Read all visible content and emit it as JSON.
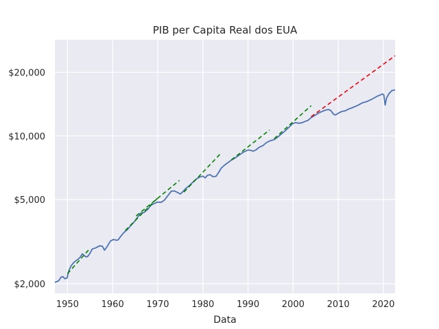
{
  "chart_data": {
    "type": "line",
    "title": "PIB per Capita Real dos EUA",
    "xlabel": "Data",
    "ylabel": "",
    "xlim": [
      1947.2,
      2022.6
    ],
    "ylim": [
      1800,
      28500
    ],
    "y_scale": "log",
    "x_ticks": [
      1950,
      1960,
      1970,
      1980,
      1990,
      2000,
      2010,
      2020
    ],
    "y_ticks": [
      {
        "value": 2000,
        "label": "$2,000"
      },
      {
        "value": 5000,
        "label": "$5,000"
      },
      {
        "value": 10000,
        "label": "$10,000"
      },
      {
        "value": 20000,
        "label": "$20,000"
      }
    ],
    "grid": true,
    "background": "#eaeaf2",
    "colors": {
      "main": "#4c72b0",
      "cycle_trend": "#008000",
      "projection": "#e8000b"
    },
    "series": [
      {
        "style": "solid",
        "points": [
          [
            1947.2,
            2030
          ],
          [
            1948.0,
            2060
          ],
          [
            1948.6,
            2150
          ],
          [
            1949.0,
            2160
          ],
          [
            1949.4,
            2110
          ],
          [
            1949.9,
            2130
          ],
          [
            1950.3,
            2310
          ],
          [
            1950.8,
            2430
          ],
          [
            1951.4,
            2520
          ],
          [
            1952.0,
            2580
          ],
          [
            1952.7,
            2650
          ],
          [
            1953.3,
            2770
          ],
          [
            1953.9,
            2690
          ],
          [
            1954.4,
            2680
          ],
          [
            1954.9,
            2770
          ],
          [
            1955.5,
            2920
          ],
          [
            1956.2,
            2950
          ],
          [
            1957.1,
            3020
          ],
          [
            1957.7,
            3010
          ],
          [
            1958.2,
            2880
          ],
          [
            1958.8,
            3000
          ],
          [
            1959.5,
            3180
          ],
          [
            1960.2,
            3240
          ],
          [
            1960.8,
            3210
          ],
          [
            1961.2,
            3220
          ],
          [
            1961.8,
            3350
          ],
          [
            1962.5,
            3490
          ],
          [
            1963.3,
            3610
          ],
          [
            1964.0,
            3760
          ],
          [
            1964.7,
            3900
          ],
          [
            1965.5,
            4120
          ],
          [
            1966.2,
            4310
          ],
          [
            1967.0,
            4350
          ],
          [
            1967.8,
            4500
          ],
          [
            1968.5,
            4700
          ],
          [
            1969.3,
            4800
          ],
          [
            1970.0,
            4860
          ],
          [
            1970.8,
            4850
          ],
          [
            1971.5,
            4980
          ],
          [
            1972.3,
            5240
          ],
          [
            1973.0,
            5480
          ],
          [
            1973.7,
            5490
          ],
          [
            1974.4,
            5400
          ],
          [
            1975.0,
            5310
          ],
          [
            1975.6,
            5460
          ],
          [
            1976.2,
            5640
          ],
          [
            1977.0,
            5820
          ],
          [
            1977.8,
            6050
          ],
          [
            1978.5,
            6250
          ],
          [
            1979.3,
            6390
          ],
          [
            1980.0,
            6450
          ],
          [
            1980.5,
            6330
          ],
          [
            1981.0,
            6500
          ],
          [
            1981.6,
            6560
          ],
          [
            1982.2,
            6420
          ],
          [
            1982.9,
            6430
          ],
          [
            1983.5,
            6720
          ],
          [
            1984.1,
            7050
          ],
          [
            1984.8,
            7270
          ],
          [
            1985.5,
            7460
          ],
          [
            1986.3,
            7680
          ],
          [
            1987.0,
            7830
          ],
          [
            1987.8,
            8050
          ],
          [
            1988.6,
            8270
          ],
          [
            1989.3,
            8450
          ],
          [
            1990.1,
            8580
          ],
          [
            1990.7,
            8530
          ],
          [
            1991.2,
            8470
          ],
          [
            1991.8,
            8600
          ],
          [
            1992.5,
            8840
          ],
          [
            1993.3,
            9000
          ],
          [
            1994.1,
            9300
          ],
          [
            1994.9,
            9480
          ],
          [
            1995.8,
            9600
          ],
          [
            1996.6,
            9880
          ],
          [
            1997.4,
            10200
          ],
          [
            1998.2,
            10550
          ],
          [
            1999.0,
            10950
          ],
          [
            1999.8,
            11380
          ],
          [
            2000.5,
            11570
          ],
          [
            2001.2,
            11480
          ],
          [
            2001.9,
            11530
          ],
          [
            2002.6,
            11700
          ],
          [
            2003.3,
            11850
          ],
          [
            2004.0,
            12200
          ],
          [
            2004.8,
            12500
          ],
          [
            2005.6,
            12800
          ],
          [
            2006.4,
            13050
          ],
          [
            2007.2,
            13250
          ],
          [
            2007.9,
            13330
          ],
          [
            2008.4,
            13150
          ],
          [
            2008.9,
            12700
          ],
          [
            2009.4,
            12560
          ],
          [
            2010.0,
            12800
          ],
          [
            2010.8,
            13050
          ],
          [
            2011.6,
            13150
          ],
          [
            2012.3,
            13400
          ],
          [
            2013.1,
            13600
          ],
          [
            2013.9,
            13820
          ],
          [
            2014.6,
            14050
          ],
          [
            2015.4,
            14350
          ],
          [
            2016.2,
            14500
          ],
          [
            2017.0,
            14750
          ],
          [
            2017.8,
            15050
          ],
          [
            2018.6,
            15400
          ],
          [
            2019.3,
            15620
          ],
          [
            2019.8,
            15800
          ],
          [
            2020.1,
            15600
          ],
          [
            2020.4,
            14000
          ],
          [
            2020.7,
            15100
          ],
          [
            2021.3,
            15900
          ],
          [
            2021.9,
            16400
          ],
          [
            2022.6,
            16500
          ]
        ]
      },
      {
        "style": "dashed",
        "points": [
          [
            1950.0,
            2230
          ],
          [
            1955.0,
            2940
          ]
        ]
      },
      {
        "style": "dashed",
        "points": [
          [
            1962.8,
            3570
          ],
          [
            1970.0,
            5090
          ]
        ]
      },
      {
        "style": "dashed",
        "points": [
          [
            1965.2,
            4180
          ],
          [
            1974.8,
            6160
          ]
        ]
      },
      {
        "style": "dashed",
        "points": [
          [
            1975.8,
            5420
          ],
          [
            1984.0,
            8280
          ]
        ]
      },
      {
        "style": "dashed",
        "points": [
          [
            1986.3,
            7700
          ],
          [
            1994.8,
            10670
          ]
        ]
      },
      {
        "style": "dashed",
        "points": [
          [
            1995.8,
            9700
          ],
          [
            2004.0,
            13900
          ]
        ]
      },
      {
        "style": "dashed",
        "points": [
          [
            2004.0,
            12320
          ],
          [
            2022.6,
            23950
          ]
        ]
      }
    ]
  }
}
